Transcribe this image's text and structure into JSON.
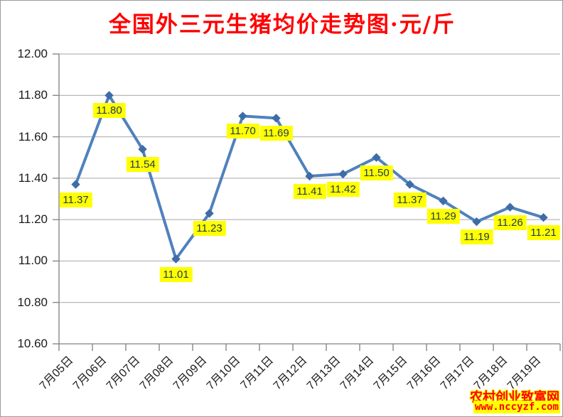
{
  "title": {
    "text": "全国外三元生猪均价走势图·元/斤"
  },
  "watermark": {
    "site_name": "农村创业致富网",
    "site_url": "www.nccyzf.com"
  },
  "chart_data": {
    "type": "line",
    "title": "全国外三元生猪均价走势图·元/斤",
    "unit": "元/斤",
    "categories": [
      "7月05日",
      "7月06日",
      "7月07日",
      "7月08日",
      "7月09日",
      "7月10日",
      "7月11日",
      "7月12日",
      "7月13日",
      "7月14日",
      "7月15日",
      "7月16日",
      "7月17日",
      "7月18日",
      "7月19日"
    ],
    "values": [
      11.37,
      11.8,
      11.54,
      11.01,
      11.23,
      11.7,
      11.69,
      11.41,
      11.42,
      11.5,
      11.37,
      11.29,
      11.19,
      11.26,
      11.21
    ],
    "xlabel": "",
    "ylabel": "",
    "ylim": [
      10.6,
      12.0
    ],
    "ytick_step": 0.2,
    "grid": true,
    "legend": "none",
    "data_labels": true,
    "marker": "diamond",
    "colors": {
      "title": "#ff0000",
      "line": "#4f81bd",
      "marker": "#3f6ca6",
      "label_bg": "#ffff00",
      "label_text": "#223a4e",
      "gridline": "#a6a6a6",
      "axis": "#808080",
      "tick_text": "#1a1a1a",
      "watermark_text": "#ff0000",
      "watermark_outline": "#ffff00"
    }
  }
}
